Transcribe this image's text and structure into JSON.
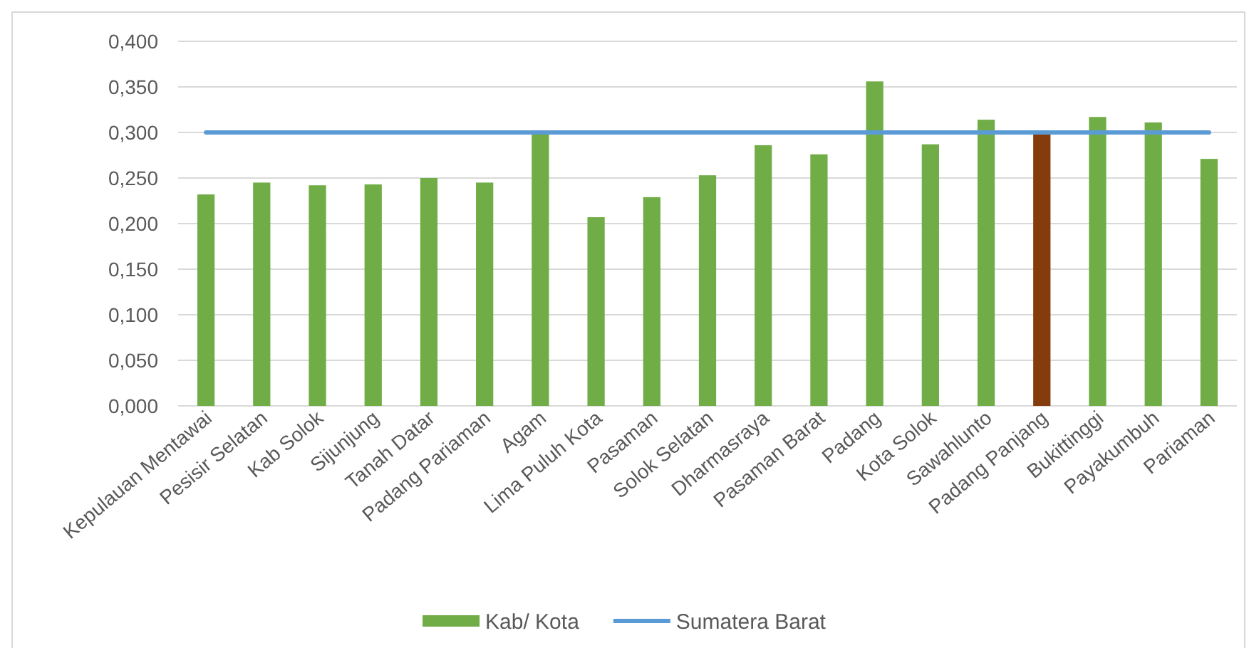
{
  "chart_data": {
    "type": "bar",
    "categories": [
      "Kepulauan Mentawai",
      "Pesisir Selatan",
      "Kab Solok",
      "Sijunjung",
      "Tanah Datar",
      "Padang Pariaman",
      "Agam",
      "Lima Puluh Kota",
      "Pasaman",
      "Solok Selatan",
      "Dharmasraya",
      "Pasaman Barat",
      "Padang",
      "Kota Solok",
      "Sawahlunto",
      "Padang Panjang",
      "Bukittinggi",
      "Payakumbuh",
      "Pariaman"
    ],
    "series": [
      {
        "name": "Kab/ Kota",
        "color": "#70ad47",
        "colors": [
          "#70ad47",
          "#70ad47",
          "#70ad47",
          "#70ad47",
          "#70ad47",
          "#70ad47",
          "#70ad47",
          "#70ad47",
          "#70ad47",
          "#70ad47",
          "#70ad47",
          "#70ad47",
          "#70ad47",
          "#70ad47",
          "#70ad47",
          "#843c0c",
          "#70ad47",
          "#70ad47",
          "#70ad47"
        ],
        "values": [
          0.232,
          0.245,
          0.242,
          0.243,
          0.25,
          0.245,
          0.3,
          0.207,
          0.229,
          0.253,
          0.286,
          0.276,
          0.356,
          0.287,
          0.314,
          0.298,
          0.317,
          0.311,
          0.271
        ]
      },
      {
        "name": "Sumatera Barat",
        "type": "line",
        "color": "#5b9bd5",
        "values": [
          0.3,
          0.3,
          0.3,
          0.3,
          0.3,
          0.3,
          0.3,
          0.3,
          0.3,
          0.3,
          0.3,
          0.3,
          0.3,
          0.3,
          0.3,
          0.3,
          0.3,
          0.3,
          0.3
        ]
      }
    ],
    "ylim": [
      0,
      0.4
    ],
    "yticks": [
      {
        "value": 0,
        "label": "0,000"
      },
      {
        "value": 0.05,
        "label": "0,050"
      },
      {
        "value": 0.1,
        "label": "0,100"
      },
      {
        "value": 0.15,
        "label": "0,150"
      },
      {
        "value": 0.2,
        "label": "0,200"
      },
      {
        "value": 0.25,
        "label": "0,250"
      },
      {
        "value": 0.3,
        "label": "0,300"
      },
      {
        "value": 0.35,
        "label": "0,350"
      },
      {
        "value": 0.4,
        "label": "0,400"
      }
    ],
    "grid": "y",
    "legend": "bottom",
    "marker": "none"
  }
}
